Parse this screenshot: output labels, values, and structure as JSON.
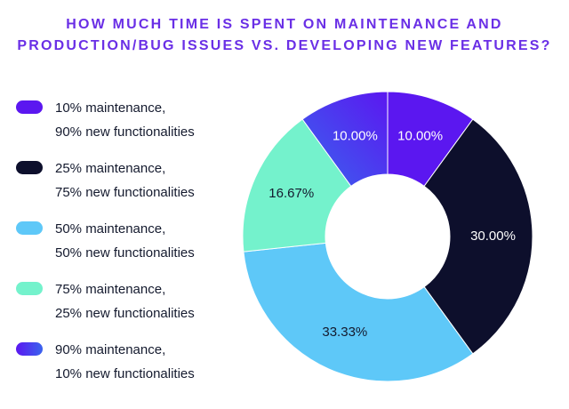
{
  "chart_data": {
    "type": "pie",
    "variant": "donut",
    "title_lines": [
      "HOW MUCH TIME IS SPENT ON MAINTENANCE AND",
      "PRODUCTION/BUG ISSUES VS. DEVELOPING NEW FEATURES?"
    ],
    "legend_position": "left",
    "slices": [
      {
        "label_lines": [
          "10% maintenance,",
          "90% new functionalities"
        ],
        "value": 10.0,
        "display": "10.00%",
        "color": "#5b17f0",
        "label_color": "#ffffff"
      },
      {
        "label_lines": [
          "25% maintenance,",
          "75% new functionalities"
        ],
        "value": 30.0,
        "display": "30.00%",
        "color": "#0d0f2c",
        "label_color": "#ffffff"
      },
      {
        "label_lines": [
          "50% maintenance,",
          "50% new functionalities"
        ],
        "value": 33.33,
        "display": "33.33%",
        "color": "#5ec8f8",
        "label_color": "#141a2e"
      },
      {
        "label_lines": [
          "75% maintenance,",
          "25% new functionalities"
        ],
        "value": 16.67,
        "display": "16.67%",
        "color": "#74f2cc",
        "label_color": "#141a2e"
      },
      {
        "label_lines": [
          "90% maintenance,",
          "10% new functionalities"
        ],
        "value": 10.0,
        "display": "10.00%",
        "color": "#3a64ee",
        "gradient_to": "#5b17f0",
        "label_color": "#ffffff"
      }
    ]
  }
}
